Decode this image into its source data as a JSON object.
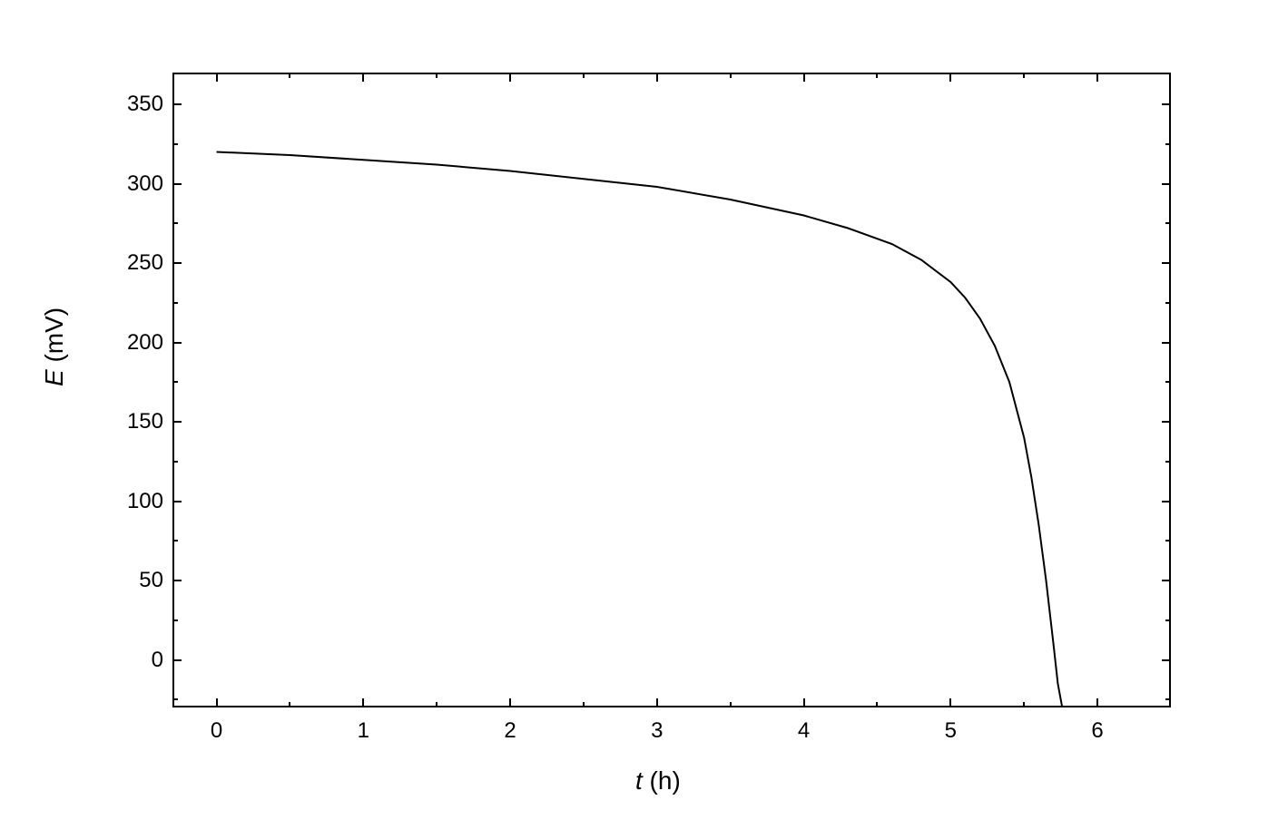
{
  "chart": {
    "type": "line",
    "xlabel_var": "t",
    "xlabel_unit": " (h)",
    "ylabel_var": "E",
    "ylabel_unit": " (mV)",
    "label_fontsize": 28,
    "tick_fontsize": 24,
    "line_color": "#000000",
    "line_width": 2,
    "background_color": "#ffffff",
    "border_color": "#000000",
    "border_width": 2,
    "xlim": [
      -0.3,
      6.5
    ],
    "ylim": [
      -30,
      370
    ],
    "xticks": [
      0,
      1,
      2,
      3,
      4,
      5,
      6
    ],
    "xtick_minor_count": 1,
    "yticks": [
      0,
      50,
      100,
      150,
      200,
      250,
      300,
      350
    ],
    "ytick_minor_count": 1,
    "data": {
      "x": [
        0,
        0.5,
        1.0,
        1.5,
        2.0,
        2.5,
        3.0,
        3.5,
        4.0,
        4.3,
        4.6,
        4.8,
        5.0,
        5.1,
        5.2,
        5.3,
        5.4,
        5.5,
        5.55,
        5.6,
        5.65,
        5.7,
        5.73,
        5.76
      ],
      "y": [
        320,
        318,
        315,
        312,
        308,
        303,
        298,
        290,
        280,
        272,
        262,
        252,
        238,
        228,
        215,
        198,
        175,
        140,
        115,
        85,
        50,
        10,
        -15,
        -30
      ]
    }
  }
}
